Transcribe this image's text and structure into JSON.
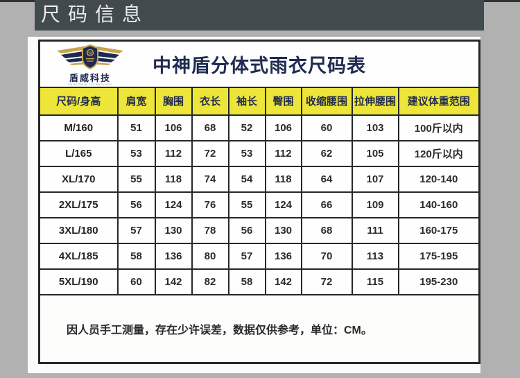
{
  "page_header": {
    "title": "尺码信息"
  },
  "brand": {
    "logo_name": "盾威科技",
    "logo_subtext": "SHIELDWIN TECHNOLOGY",
    "table_title": "中神盾分体式雨衣尺码表"
  },
  "size_table": {
    "columns": [
      "尺码/身高",
      "肩宽",
      "胸围",
      "衣长",
      "袖长",
      "臀围",
      "收缩腰围",
      "拉伸腰围",
      "建议体重范围"
    ],
    "rows": [
      [
        "M/160",
        "51",
        "106",
        "68",
        "52",
        "106",
        "60",
        "103",
        "100斤以内"
      ],
      [
        "L/165",
        "53",
        "112",
        "72",
        "53",
        "112",
        "62",
        "105",
        "120斤以内"
      ],
      [
        "XL/170",
        "55",
        "118",
        "74",
        "54",
        "118",
        "64",
        "107",
        "120-140"
      ],
      [
        "2XL/175",
        "56",
        "124",
        "76",
        "55",
        "124",
        "66",
        "109",
        "140-160"
      ],
      [
        "3XL/180",
        "57",
        "130",
        "78",
        "56",
        "130",
        "68",
        "111",
        "160-175"
      ],
      [
        "4XL/185",
        "58",
        "136",
        "80",
        "57",
        "136",
        "70",
        "113",
        "175-195"
      ],
      [
        "5XL/190",
        "60",
        "142",
        "82",
        "58",
        "142",
        "72",
        "115",
        "195-230"
      ]
    ],
    "note": "因人员手工测量，存在少许误差，数据仅供参考，单位：CM。"
  },
  "colors": {
    "page_bg": "#b1b1b1",
    "header_bar_bg": "#414a4d",
    "header_text": "#ececec",
    "table_header_bg": "#ede539",
    "navy": "#1f2b50",
    "gold": "#c9a44e",
    "border": "#23282b"
  }
}
